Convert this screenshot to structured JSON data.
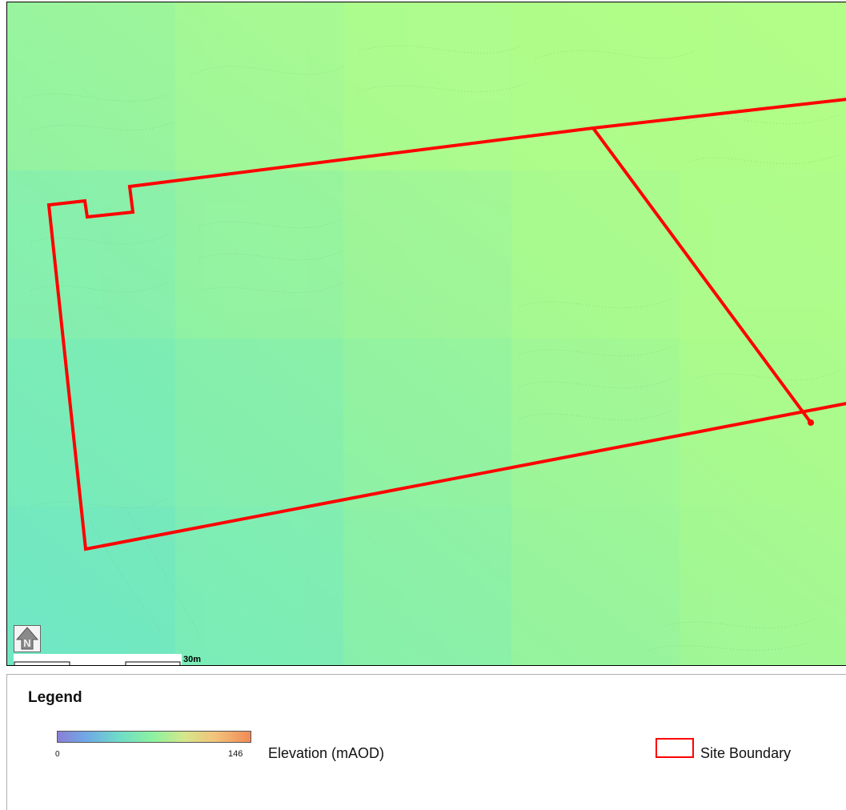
{
  "map": {
    "north_arrow_letter": "N",
    "scale_label": "30m",
    "boundary_color": "#ff0000",
    "elevation_colors": {
      "low": "#6fe8c0",
      "mid": "#8ef29e",
      "high": "#b2fd88"
    }
  },
  "legend": {
    "title": "Legend",
    "ramp_min": "0",
    "ramp_max": "146",
    "elevation_label": "Elevation (mAOD)",
    "site_boundary_label": "Site Boundary"
  }
}
